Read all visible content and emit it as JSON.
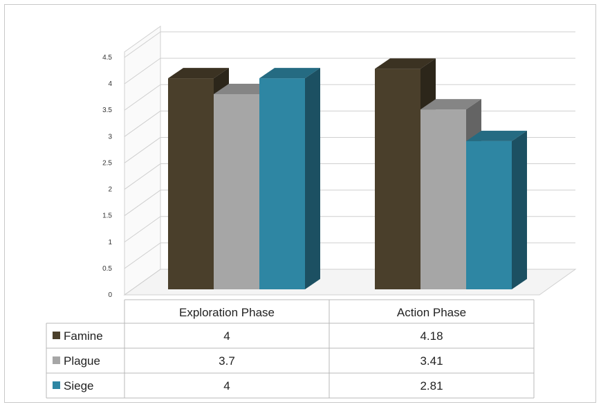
{
  "chart_data": {
    "type": "bar",
    "categories": [
      "Exploration Phase",
      "Action Phase"
    ],
    "series": [
      {
        "name": "Famine",
        "values": [
          4,
          4.18
        ],
        "color": "#4a3f2b"
      },
      {
        "name": "Plague",
        "values": [
          3.7,
          3.41
        ],
        "color": "#a6a6a6"
      },
      {
        "name": "Siege",
        "values": [
          4,
          2.81
        ],
        "color": "#2e86a3"
      }
    ],
    "value_labels": [
      [
        "4",
        "4.18"
      ],
      [
        "3.7",
        "3.41"
      ],
      [
        "4",
        "2.81"
      ]
    ],
    "yticks": [
      "0",
      "0.5",
      "1",
      "1.5",
      "2",
      "2.5",
      "3",
      "3.5",
      "4",
      "4.5"
    ],
    "ylim": [
      0,
      4.5
    ],
    "grid": true,
    "style": "3d-clustered-column-with-data-table",
    "legend_placement": "data-table-left"
  }
}
